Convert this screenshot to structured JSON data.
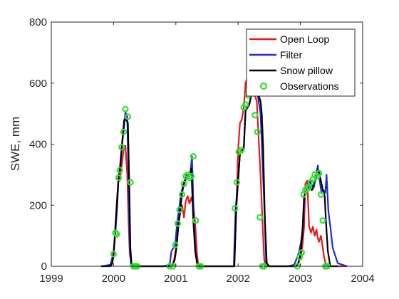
{
  "chart_data": {
    "type": "line",
    "title": "",
    "xlabel": "",
    "ylabel": "SWE, mm",
    "xlim": [
      1999,
      2004
    ],
    "ylim": [
      0,
      800
    ],
    "xticks": [
      1999,
      2000,
      2001,
      2002,
      2003,
      2004
    ],
    "yticks": [
      0,
      200,
      400,
      600,
      800
    ],
    "grid": false,
    "legend_position": "top-right",
    "series": [
      {
        "name": "Open Loop",
        "color": "#e41a1c",
        "x": [
          1999.8,
          1999.95,
          2000.0,
          2000.03,
          2000.06,
          2000.08,
          2000.1,
          2000.13,
          2000.16,
          2000.19,
          2000.22,
          2000.24,
          2000.26,
          2000.29,
          2000.33,
          2000.36,
          2000.4,
          2000.5,
          2000.8,
          2000.92,
          2000.95,
          2000.98,
          2001.02,
          2001.05,
          2001.07,
          2001.1,
          2001.13,
          2001.16,
          2001.19,
          2001.22,
          2001.25,
          2001.28,
          2001.31,
          2001.34,
          2001.36,
          2001.4,
          2001.5,
          2001.8,
          2001.93,
          2001.96,
          2002.0,
          2002.03,
          2002.06,
          2002.09,
          2002.12,
          2002.15,
          2002.18,
          2002.21,
          2002.24,
          2002.27,
          2002.3,
          2002.33,
          2002.36,
          2002.39,
          2002.42,
          2002.45,
          2002.5,
          2002.8,
          2002.93,
          2002.96,
          2003.0,
          2003.03,
          2003.06,
          2003.08,
          2003.11,
          2003.14,
          2003.17,
          2003.2,
          2003.23,
          2003.26,
          2003.28,
          2003.3,
          2003.33,
          2003.36,
          2003.38,
          2003.41,
          2003.44,
          2003.5,
          2003.75
        ],
        "y": [
          0,
          2,
          30,
          120,
          230,
          290,
          280,
          330,
          380,
          395,
          300,
          150,
          40,
          5,
          0,
          0,
          0,
          0,
          0,
          0,
          5,
          30,
          90,
          150,
          175,
          200,
          160,
          215,
          230,
          205,
          225,
          200,
          140,
          40,
          5,
          0,
          0,
          0,
          0,
          120,
          380,
          470,
          480,
          520,
          600,
          620,
          610,
          630,
          590,
          560,
          540,
          420,
          300,
          150,
          20,
          0,
          0,
          0,
          0,
          10,
          30,
          60,
          130,
          270,
          280,
          130,
          110,
          130,
          100,
          120,
          90,
          80,
          100,
          60,
          30,
          5,
          0,
          0,
          0
        ]
      },
      {
        "name": "Filter",
        "color": "#1f2dcc",
        "x": [
          1999.8,
          1999.95,
          2000.0,
          2000.03,
          2000.06,
          2000.08,
          2000.1,
          2000.13,
          2000.16,
          2000.19,
          2000.22,
          2000.24,
          2000.26,
          2000.28,
          2000.3,
          2000.33,
          2000.36,
          2000.4,
          2000.5,
          2000.8,
          2000.9,
          2000.93,
          2000.96,
          2000.99,
          2001.02,
          2001.05,
          2001.08,
          2001.11,
          2001.14,
          2001.17,
          2001.2,
          2001.23,
          2001.26,
          2001.29,
          2001.32,
          2001.35,
          2001.37,
          2001.4,
          2001.5,
          2001.8,
          2001.93,
          2001.96,
          2002.0,
          2002.03,
          2002.06,
          2002.09,
          2002.12,
          2002.15,
          2002.18,
          2002.21,
          2002.24,
          2002.27,
          2002.3,
          2002.33,
          2002.36,
          2002.4,
          2002.43,
          2002.45,
          2002.5,
          2002.8,
          2002.9,
          2002.95,
          2002.98,
          2003.01,
          2003.04,
          2003.07,
          2003.1,
          2003.13,
          2003.16,
          2003.19,
          2003.22,
          2003.25,
          2003.28,
          2003.31,
          2003.34,
          2003.37,
          2003.4,
          2003.42,
          2003.45,
          2003.48,
          2003.52,
          2003.6,
          2003.75
        ],
        "y": [
          0,
          5,
          45,
          110,
          200,
          290,
          320,
          390,
          440,
          505,
          490,
          280,
          60,
          5,
          0,
          0,
          0,
          0,
          0,
          0,
          5,
          50,
          60,
          70,
          140,
          185,
          235,
          260,
          280,
          300,
          290,
          300,
          360,
          150,
          40,
          5,
          0,
          0,
          0,
          0,
          0,
          190,
          280,
          370,
          380,
          380,
          510,
          520,
          530,
          560,
          600,
          570,
          590,
          540,
          500,
          300,
          150,
          10,
          0,
          0,
          5,
          30,
          50,
          80,
          130,
          240,
          250,
          260,
          280,
          250,
          260,
          300,
          330,
          280,
          240,
          250,
          240,
          300,
          180,
          130,
          60,
          10,
          0
        ]
      },
      {
        "name": "Snow pillow",
        "color": "#000000",
        "x": [
          1999.8,
          1999.95,
          1999.98,
          2000.0,
          2000.02,
          2000.05,
          2000.08,
          2000.11,
          2000.14,
          2000.17,
          2000.2,
          2000.23,
          2000.25,
          2000.27,
          2000.29,
          2000.31,
          2000.35,
          2000.5,
          2000.8,
          2000.92,
          2000.95,
          2000.98,
          2001.01,
          2001.04,
          2001.07,
          2001.1,
          2001.13,
          2001.16,
          2001.19,
          2001.22,
          2001.25,
          2001.28,
          2001.31,
          2001.34,
          2001.36,
          2001.4,
          2001.5,
          2001.8,
          2001.94,
          2001.97,
          2002.0,
          2002.03,
          2002.06,
          2002.09,
          2002.12,
          2002.15,
          2002.18,
          2002.21,
          2002.24,
          2002.27,
          2002.3,
          2002.33,
          2002.36,
          2002.38,
          2002.4,
          2002.43,
          2002.46,
          2002.5,
          2002.8,
          2002.93,
          2002.97,
          2003.0,
          2003.03,
          2003.06,
          2003.09,
          2003.12,
          2003.15,
          2003.18,
          2003.21,
          2003.24,
          2003.27,
          2003.3,
          2003.33,
          2003.36,
          2003.39,
          2003.41,
          2003.44,
          2003.48,
          2003.6
        ],
        "y": [
          0,
          0,
          10,
          40,
          100,
          200,
          290,
          330,
          410,
          480,
          480,
          470,
          280,
          60,
          5,
          0,
          0,
          0,
          0,
          0,
          5,
          20,
          60,
          130,
          180,
          240,
          270,
          285,
          300,
          300,
          320,
          150,
          50,
          10,
          0,
          0,
          0,
          0,
          0,
          190,
          280,
          370,
          380,
          390,
          510,
          520,
          530,
          560,
          580,
          600,
          580,
          560,
          540,
          500,
          400,
          150,
          10,
          0,
          0,
          0,
          10,
          40,
          100,
          230,
          240,
          250,
          260,
          250,
          270,
          280,
          300,
          310,
          280,
          250,
          230,
          150,
          50,
          0,
          0
        ]
      },
      {
        "name": "Observations",
        "color": "#33dd33",
        "x": [
          2000.0,
          2000.03,
          2000.05,
          2000.08,
          2000.1,
          2000.13,
          2000.16,
          2000.19,
          2000.23,
          2000.27,
          2000.32,
          2000.35,
          2000.38,
          2000.9,
          2000.95,
          2000.99,
          2001.03,
          2001.06,
          2001.1,
          2001.13,
          2001.16,
          2001.19,
          2001.22,
          2001.25,
          2001.28,
          2001.32,
          2001.37,
          2001.4,
          2001.95,
          2001.98,
          2002.01,
          2002.05,
          2002.09,
          2002.12,
          2002.16,
          2002.19,
          2002.23,
          2002.27,
          2002.31,
          2002.35,
          2002.39,
          2002.42,
          2002.95,
          2002.99,
          2003.02,
          2003.05,
          2003.08,
          2003.11,
          2003.14,
          2003.17,
          2003.2,
          2003.23,
          2003.27,
          2003.3,
          2003.33,
          2003.36,
          2003.4,
          2003.43
        ],
        "y": [
          40,
          110,
          105,
          290,
          315,
          390,
          440,
          515,
          490,
          275,
          0,
          0,
          0,
          0,
          0,
          70,
          140,
          185,
          235,
          270,
          295,
          300,
          290,
          295,
          360,
          150,
          0,
          0,
          190,
          275,
          375,
          380,
          520,
          530,
          560,
          600,
          590,
          495,
          440,
          160,
          0,
          0,
          0,
          30,
          45,
          235,
          250,
          255,
          260,
          275,
          285,
          300,
          295,
          305,
          235,
          150,
          0,
          0
        ]
      }
    ]
  }
}
